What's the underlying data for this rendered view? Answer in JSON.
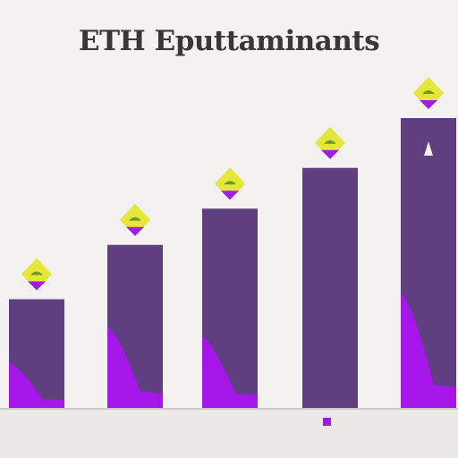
{
  "chart_data": {
    "type": "bar",
    "title": "ETH Eputtaminants",
    "categories": [
      "",
      "",
      "",
      "",
      ""
    ],
    "series": [
      {
        "values": [
          120,
          180,
          220,
          265,
          320
        ]
      }
    ],
    "inner_fill_fraction": [
      0.42,
      0.5,
      0.36,
      0.0,
      0.4
    ],
    "ylim": [
      0,
      320
    ],
    "grid": false,
    "legend": "none",
    "annotations": [
      "",
      "",
      "",
      ""
    ],
    "colors": {
      "bar": "#5f3f80",
      "bar_inner": "#a516e8",
      "marker_gem": "#e5e63a",
      "marker_base": "#a01ee0",
      "background": "#f4f2f0",
      "baseline": "#ccc8c4"
    }
  }
}
